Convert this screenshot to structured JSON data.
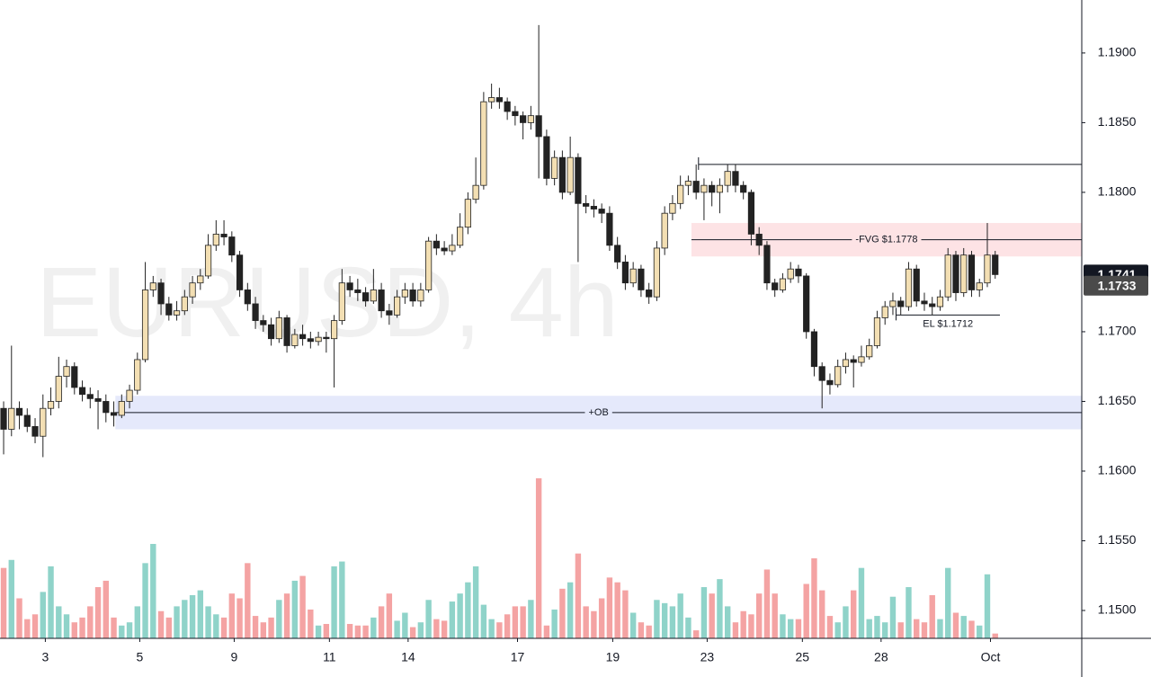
{
  "chart_data": {
    "type": "candlestick",
    "watermark": "EURUSD, 4h",
    "up_color": "#f3dfb3",
    "down_color": "#222222",
    "vol_up_color": "#8fd3c9",
    "vol_down_color": "#f4a3a3",
    "ylim": [
      1.148,
      1.1938
    ],
    "xlim": [
      -0.46,
      137
    ],
    "vlim": [
      0,
      100
    ],
    "yticks": [
      {
        "value": 1.19,
        "label": "1.1900"
      },
      {
        "value": 1.185,
        "label": "1.1850"
      },
      {
        "value": 1.18,
        "label": "1.1800"
      },
      {
        "value": 1.17,
        "label": "1.1700"
      },
      {
        "value": 1.165,
        "label": "1.1650"
      },
      {
        "value": 1.16,
        "label": "1.1600"
      },
      {
        "value": 1.155,
        "label": "1.1550"
      },
      {
        "value": 1.15,
        "label": "1.1500"
      }
    ],
    "xticks": [
      {
        "value": 5.3,
        "label": "3"
      },
      {
        "value": 17.3,
        "label": "5"
      },
      {
        "value": 29.3,
        "label": "9"
      },
      {
        "value": 41.4,
        "label": "11"
      },
      {
        "value": 51.4,
        "label": "14"
      },
      {
        "value": 65.3,
        "label": "17"
      },
      {
        "value": 77.4,
        "label": "19"
      },
      {
        "value": 89.4,
        "label": "23"
      },
      {
        "value": 101.5,
        "label": "25"
      },
      {
        "value": 111.5,
        "label": "28"
      },
      {
        "value": 125.4,
        "label": "Oct"
      }
    ],
    "price_labels": [
      {
        "value": 1.1741,
        "label": "1.1741",
        "color": "#131722"
      },
      {
        "value": 1.1733,
        "label": "1.1733",
        "color": "#4a4a4a"
      }
    ],
    "zones": [
      {
        "label": "-FVG $1.1778",
        "zone": [
          1.1754,
          1.1778
        ],
        "level": 1.1766,
        "start": 87.4,
        "color": "#fde3e5"
      },
      {
        "label": "+OB",
        "zone": [
          1.163,
          1.1654
        ],
        "level": 1.1642,
        "start": 14.2,
        "color": "#e5e9fb"
      }
    ],
    "lines": [
      {
        "level": 1.182,
        "start": 88.3
      },
      {
        "label": "EL $1.1712",
        "level": 1.1712,
        "start": 113.4,
        "end": 126.6
      }
    ],
    "ohlc": [
      [
        1.1645,
        1.165,
        1.1612,
        1.163
      ],
      [
        1.163,
        1.169,
        1.1625,
        1.1645
      ],
      [
        1.1645,
        1.165,
        1.163,
        1.164
      ],
      [
        1.164,
        1.1645,
        1.1628,
        1.1632
      ],
      [
        1.1632,
        1.1638,
        1.162,
        1.1625
      ],
      [
        1.1625,
        1.1655,
        1.161,
        1.1645
      ],
      [
        1.1645,
        1.166,
        1.164,
        1.165
      ],
      [
        1.165,
        1.1682,
        1.1645,
        1.1668
      ],
      [
        1.1668,
        1.168,
        1.166,
        1.1675
      ],
      [
        1.1675,
        1.1678,
        1.1655,
        1.166
      ],
      [
        1.166,
        1.1665,
        1.165,
        1.1655
      ],
      [
        1.1655,
        1.166,
        1.1645,
        1.1652
      ],
      [
        1.1652,
        1.1658,
        1.163,
        1.165
      ],
      [
        1.165,
        1.1655,
        1.1635,
        1.1642
      ],
      [
        1.1642,
        1.165,
        1.1632,
        1.164
      ],
      [
        1.164,
        1.1655,
        1.1638,
        1.165
      ],
      [
        1.165,
        1.1662,
        1.1645,
        1.1658
      ],
      [
        1.1658,
        1.1685,
        1.1655,
        1.168
      ],
      [
        1.168,
        1.175,
        1.1678,
        1.173
      ],
      [
        1.173,
        1.174,
        1.1725,
        1.1735
      ],
      [
        1.1735,
        1.1738,
        1.1712,
        1.172
      ],
      [
        1.172,
        1.1725,
        1.1708,
        1.1712
      ],
      [
        1.1712,
        1.1722,
        1.1708,
        1.1715
      ],
      [
        1.1715,
        1.173,
        1.1712,
        1.1725
      ],
      [
        1.1725,
        1.174,
        1.172,
        1.1735
      ],
      [
        1.1735,
        1.1745,
        1.173,
        1.174
      ],
      [
        1.174,
        1.177,
        1.1738,
        1.1762
      ],
      [
        1.1762,
        1.178,
        1.1758,
        1.177
      ],
      [
        1.177,
        1.178,
        1.1762,
        1.1768
      ],
      [
        1.1768,
        1.1772,
        1.175,
        1.1755
      ],
      [
        1.1755,
        1.1758,
        1.1725,
        1.173
      ],
      [
        1.173,
        1.1735,
        1.1715,
        1.172
      ],
      [
        1.172,
        1.1725,
        1.1702,
        1.1708
      ],
      [
        1.1708,
        1.1712,
        1.17,
        1.1705
      ],
      [
        1.1705,
        1.171,
        1.169,
        1.1695
      ],
      [
        1.1695,
        1.1715,
        1.1692,
        1.171
      ],
      [
        1.171,
        1.1712,
        1.1685,
        1.169
      ],
      [
        1.169,
        1.1702,
        1.1688,
        1.1698
      ],
      [
        1.1698,
        1.1705,
        1.169,
        1.1695
      ],
      [
        1.1695,
        1.17,
        1.1688,
        1.1693
      ],
      [
        1.1693,
        1.17,
        1.169,
        1.1696
      ],
      [
        1.1696,
        1.17,
        1.1685,
        1.1695
      ],
      [
        1.1695,
        1.1712,
        1.166,
        1.1708
      ],
      [
        1.1708,
        1.1745,
        1.1705,
        1.1735
      ],
      [
        1.1735,
        1.174,
        1.1725,
        1.173
      ],
      [
        1.173,
        1.1738,
        1.1722,
        1.1728
      ],
      [
        1.1728,
        1.1732,
        1.1718,
        1.1722
      ],
      [
        1.1722,
        1.1745,
        1.172,
        1.173
      ],
      [
        1.173,
        1.1735,
        1.171,
        1.1715
      ],
      [
        1.1715,
        1.172,
        1.1705,
        1.1712
      ],
      [
        1.1712,
        1.173,
        1.171,
        1.1725
      ],
      [
        1.1725,
        1.1735,
        1.172,
        1.173
      ],
      [
        1.173,
        1.1735,
        1.1718,
        1.1722
      ],
      [
        1.1722,
        1.1735,
        1.1718,
        1.173
      ],
      [
        1.173,
        1.1768,
        1.1728,
        1.1765
      ],
      [
        1.1765,
        1.177,
        1.1755,
        1.176
      ],
      [
        1.176,
        1.1765,
        1.1755,
        1.1758
      ],
      [
        1.1758,
        1.177,
        1.1755,
        1.1762
      ],
      [
        1.1762,
        1.1785,
        1.176,
        1.1775
      ],
      [
        1.1775,
        1.18,
        1.177,
        1.1795
      ],
      [
        1.1795,
        1.1825,
        1.1792,
        1.1805
      ],
      [
        1.1805,
        1.1872,
        1.1802,
        1.1865
      ],
      [
        1.1865,
        1.1878,
        1.186,
        1.1868
      ],
      [
        1.1868,
        1.1875,
        1.186,
        1.1865
      ],
      [
        1.1865,
        1.1868,
        1.1852,
        1.1858
      ],
      [
        1.1858,
        1.1862,
        1.1848,
        1.1855
      ],
      [
        1.1855,
        1.1858,
        1.1838,
        1.185
      ],
      [
        1.185,
        1.1862,
        1.1845,
        1.1855
      ],
      [
        1.1855,
        1.192,
        1.181,
        1.184
      ],
      [
        1.184,
        1.1845,
        1.1805,
        1.181
      ],
      [
        1.181,
        1.183,
        1.1805,
        1.1825
      ],
      [
        1.1825,
        1.183,
        1.1795,
        1.18
      ],
      [
        1.18,
        1.184,
        1.1798,
        1.1825
      ],
      [
        1.1825,
        1.1828,
        1.175,
        1.1792
      ],
      [
        1.1792,
        1.1798,
        1.1785,
        1.179
      ],
      [
        1.179,
        1.1795,
        1.1782,
        1.1788
      ],
      [
        1.1788,
        1.1792,
        1.1778,
        1.1785
      ],
      [
        1.1785,
        1.179,
        1.1758,
        1.1762
      ],
      [
        1.1762,
        1.1768,
        1.1745,
        1.175
      ],
      [
        1.175,
        1.1755,
        1.173,
        1.1735
      ],
      [
        1.1735,
        1.175,
        1.1732,
        1.1745
      ],
      [
        1.1745,
        1.1748,
        1.1725,
        1.173
      ],
      [
        1.173,
        1.1735,
        1.172,
        1.1725
      ],
      [
        1.1725,
        1.1765,
        1.1722,
        1.176
      ],
      [
        1.176,
        1.179,
        1.1755,
        1.1785
      ],
      [
        1.1785,
        1.1798,
        1.178,
        1.1792
      ],
      [
        1.1792,
        1.1812,
        1.1788,
        1.1805
      ],
      [
        1.1805,
        1.1812,
        1.1798,
        1.1808
      ],
      [
        1.1808,
        1.182,
        1.1795,
        1.18
      ],
      [
        1.18,
        1.181,
        1.178,
        1.1805
      ],
      [
        1.1805,
        1.1808,
        1.179,
        1.18
      ],
      [
        1.18,
        1.181,
        1.1785,
        1.1805
      ],
      [
        1.1805,
        1.182,
        1.18,
        1.1815
      ],
      [
        1.1815,
        1.182,
        1.18,
        1.1805
      ],
      [
        1.1805,
        1.1808,
        1.1795,
        1.18
      ],
      [
        1.18,
        1.1802,
        1.1762,
        1.177
      ],
      [
        1.177,
        1.1775,
        1.1755,
        1.1762
      ],
      [
        1.1762,
        1.1765,
        1.173,
        1.1735
      ],
      [
        1.1735,
        1.1738,
        1.1725,
        1.173
      ],
      [
        1.173,
        1.1742,
        1.1728,
        1.1738
      ],
      [
        1.1738,
        1.175,
        1.1735,
        1.1745
      ],
      [
        1.1745,
        1.1748,
        1.1735,
        1.174
      ],
      [
        1.174,
        1.1742,
        1.1695,
        1.17
      ],
      [
        1.17,
        1.1702,
        1.1668,
        1.1675
      ],
      [
        1.1675,
        1.1678,
        1.1645,
        1.1665
      ],
      [
        1.1665,
        1.167,
        1.1655,
        1.1662
      ],
      [
        1.1662,
        1.168,
        1.166,
        1.1675
      ],
      [
        1.1675,
        1.1685,
        1.167,
        1.168
      ],
      [
        1.168,
        1.1683,
        1.166,
        1.1678
      ],
      [
        1.1678,
        1.169,
        1.1675,
        1.1682
      ],
      [
        1.1682,
        1.1695,
        1.168,
        1.169
      ],
      [
        1.169,
        1.1715,
        1.1688,
        1.171
      ],
      [
        1.171,
        1.1722,
        1.1705,
        1.1718
      ],
      [
        1.1718,
        1.1728,
        1.1712,
        1.1722
      ],
      [
        1.1722,
        1.1725,
        1.1712,
        1.1718
      ],
      [
        1.1718,
        1.175,
        1.1715,
        1.1745
      ],
      [
        1.1745,
        1.1748,
        1.1718,
        1.1722
      ],
      [
        1.1722,
        1.1728,
        1.1715,
        1.172
      ],
      [
        1.172,
        1.1725,
        1.1712,
        1.1718
      ],
      [
        1.1718,
        1.173,
        1.1715,
        1.1725
      ],
      [
        1.1725,
        1.176,
        1.1722,
        1.1755
      ],
      [
        1.1755,
        1.1758,
        1.1722,
        1.1728
      ],
      [
        1.1728,
        1.176,
        1.1725,
        1.1755
      ],
      [
        1.1755,
        1.1758,
        1.1725,
        1.173
      ],
      [
        1.173,
        1.1738,
        1.1725,
        1.1735
      ],
      [
        1.1735,
        1.1778,
        1.1732,
        1.1755
      ],
      [
        1.1755,
        1.1758,
        1.1738,
        1.1741
      ]
    ],
    "volume": [
      44,
      49,
      25,
      12,
      15,
      29,
      45,
      20,
      15,
      10,
      13,
      20,
      32,
      36,
      13,
      8,
      10,
      20,
      47,
      59,
      17,
      13,
      20,
      24,
      27,
      30,
      20,
      15,
      13,
      28,
      25,
      47,
      14,
      10,
      13,
      24,
      28,
      36,
      39,
      18,
      8,
      9,
      45,
      48,
      9,
      8,
      8,
      13,
      20,
      28,
      11,
      16,
      7,
      10,
      24,
      12,
      11,
      23,
      28,
      35,
      45,
      21,
      12,
      10,
      15,
      20,
      20,
      24,
      100,
      8,
      18,
      31,
      35,
      53,
      20,
      17,
      25,
      38,
      35,
      30,
      16,
      10,
      8,
      24,
      22,
      20,
      28,
      13,
      5,
      32,
      28,
      37,
      20,
      10,
      17,
      15,
      28,
      43,
      28,
      15,
      12,
      12,
      34,
      50,
      30,
      14,
      10,
      20,
      30,
      44,
      12,
      14,
      10,
      26,
      10,
      32,
      12,
      10,
      27,
      12,
      44,
      16,
      14,
      11,
      8,
      40,
      3
    ]
  }
}
